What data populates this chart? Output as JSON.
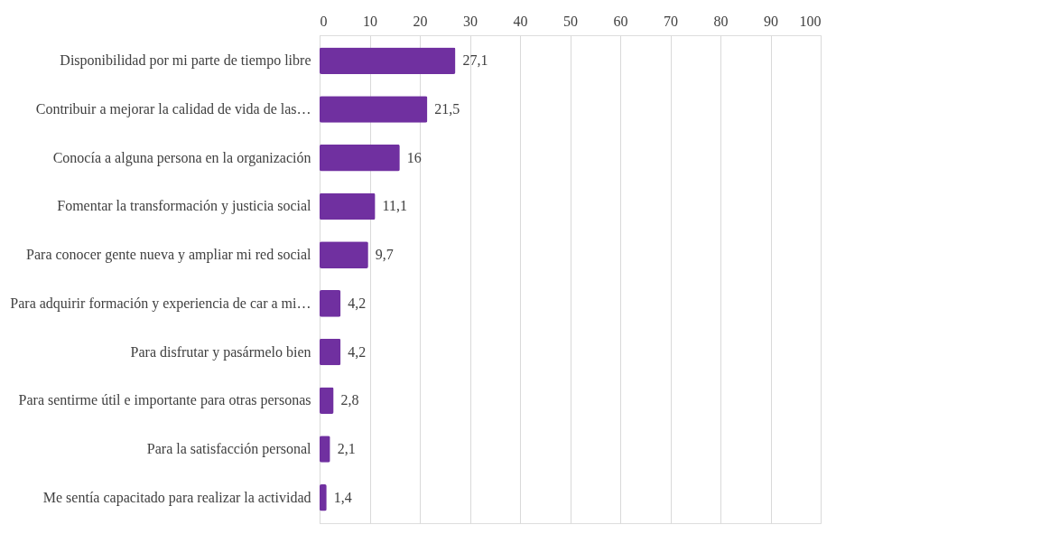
{
  "chart_data": {
    "type": "bar",
    "orientation": "horizontal",
    "categories": [
      "Disponibilidad por mi parte de tiempo libre",
      "Contribuir a mejorar la calidad de vida de las…",
      "Conocía a alguna persona en la organización",
      "Fomentar la transformación y justicia social",
      "Para conocer gente nueva y ampliar mi red social",
      "Para adquirir formación y experiencia de car a mi…",
      "Para disfrutar y pasármelo bien",
      "Para sentirme útil e importante para otras personas",
      "Para la satisfacción personal",
      "Me sentía capacitado para realizar la actividad"
    ],
    "values": [
      27.1,
      21.5,
      16,
      11.1,
      9.7,
      4.2,
      4.2,
      2.8,
      2.1,
      1.4
    ],
    "value_labels": [
      "27,1",
      "21,5",
      "16",
      "11,1",
      "9,7",
      "4,2",
      "4,2",
      "2,8",
      "2,1",
      "1,4"
    ],
    "color": "#7030a0",
    "xlim": [
      0,
      100
    ],
    "xticks": [
      0,
      10,
      20,
      30,
      40,
      50,
      60,
      70,
      80,
      90,
      100
    ],
    "grid": "x"
  }
}
